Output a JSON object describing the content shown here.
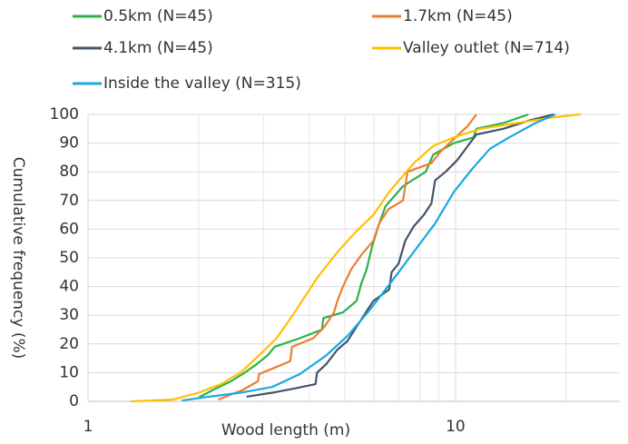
{
  "chart_data": {
    "type": "line",
    "xlabel": "Wood length (m)",
    "ylabel": "Cumulative frequency (%)",
    "xscale": "log",
    "xlim": [
      1,
      28
    ],
    "xticks": [
      1,
      10
    ],
    "xminorticks": [
      2,
      3,
      4,
      5,
      6,
      7,
      8,
      9,
      20
    ],
    "ylim": [
      0,
      100
    ],
    "yticks": [
      0,
      10,
      20,
      30,
      40,
      50,
      60,
      70,
      80,
      90,
      100
    ],
    "grid": true,
    "legend": "top",
    "series": [
      {
        "name": "0.5km (N=45)",
        "color": "#2ab24a",
        "x": [
          2.01,
          2.19,
          2.45,
          2.67,
          2.88,
          3.08,
          3.22,
          3.77,
          4.33,
          4.37,
          4.94,
          5.38,
          5.54,
          5.73,
          5.93,
          6.2,
          6.45,
          7.2,
          8.3,
          8.7,
          9.9,
          11.2,
          11.4,
          13.5,
          15.8
        ],
        "values": [
          1.5,
          4,
          7,
          10,
          13,
          16,
          19,
          22,
          25,
          29,
          31,
          35,
          41,
          46,
          54,
          62,
          68,
          75,
          80,
          86,
          90,
          92,
          95,
          97,
          100
        ]
      },
      {
        "name": "1.7km (N=45)",
        "color": "#ed7d31",
        "x": [
          2.26,
          2.64,
          2.9,
          2.92,
          3.26,
          3.55,
          3.59,
          4.1,
          4.4,
          4.67,
          4.77,
          4.94,
          5.2,
          5.54,
          5.98,
          6.2,
          6.57,
          7.2,
          7.4,
          8.6,
          9.1,
          10,
          10.8,
          11.4
        ],
        "values": [
          0.6,
          4,
          7,
          9.5,
          12,
          14,
          19,
          22,
          26,
          31,
          35,
          40,
          46,
          51,
          56,
          62,
          67,
          70,
          80,
          83,
          87,
          92,
          96,
          100
        ]
      },
      {
        "name": "4.1km (N=45)",
        "color": "#44546a",
        "x": [
          2.7,
          3.17,
          3.65,
          4.16,
          4.2,
          4.45,
          4.77,
          5.08,
          5.38,
          5.77,
          5.98,
          6.28,
          6.6,
          6.7,
          7.0,
          7.3,
          7.7,
          8.2,
          8.6,
          8.8,
          9.4,
          10.1,
          10.8,
          11.4,
          13.5,
          16,
          18.5
        ],
        "values": [
          1.6,
          3,
          4.5,
          6,
          10,
          13,
          18,
          21,
          26,
          32,
          35,
          37,
          39,
          45,
          48,
          56,
          61,
          65,
          69,
          77,
          80,
          84,
          89,
          93,
          95,
          98,
          100
        ]
      },
      {
        "name": "Valley outlet (N=714)",
        "color": "#ffc000",
        "x": [
          1.31,
          1.7,
          2.0,
          2.3,
          2.6,
          2.92,
          3.26,
          3.65,
          4.2,
          4.77,
          5.35,
          5.98,
          6.6,
          7.7,
          8.7,
          9.9,
          11.7,
          14.7,
          18.5,
          21.9
        ],
        "values": [
          0,
          0.6,
          3,
          6,
          10,
          16,
          22,
          31,
          43,
          52,
          59,
          65,
          73,
          83,
          89,
          92,
          95,
          97,
          99,
          100
        ]
      },
      {
        "name": "Inside the valley (N=315)",
        "color": "#1ba7e0",
        "x": [
          1.8,
          2.13,
          2.6,
          3.17,
          3.77,
          4.45,
          5.1,
          5.77,
          6.28,
          7.0,
          7.9,
          8.8,
          9.9,
          11.1,
          12.4,
          14,
          16.5,
          18.7
        ],
        "values": [
          0.3,
          1.6,
          3,
          5,
          9.5,
          16,
          23,
          31,
          37,
          45,
          54,
          62,
          73,
          81,
          88,
          92,
          97,
          100
        ]
      }
    ]
  }
}
